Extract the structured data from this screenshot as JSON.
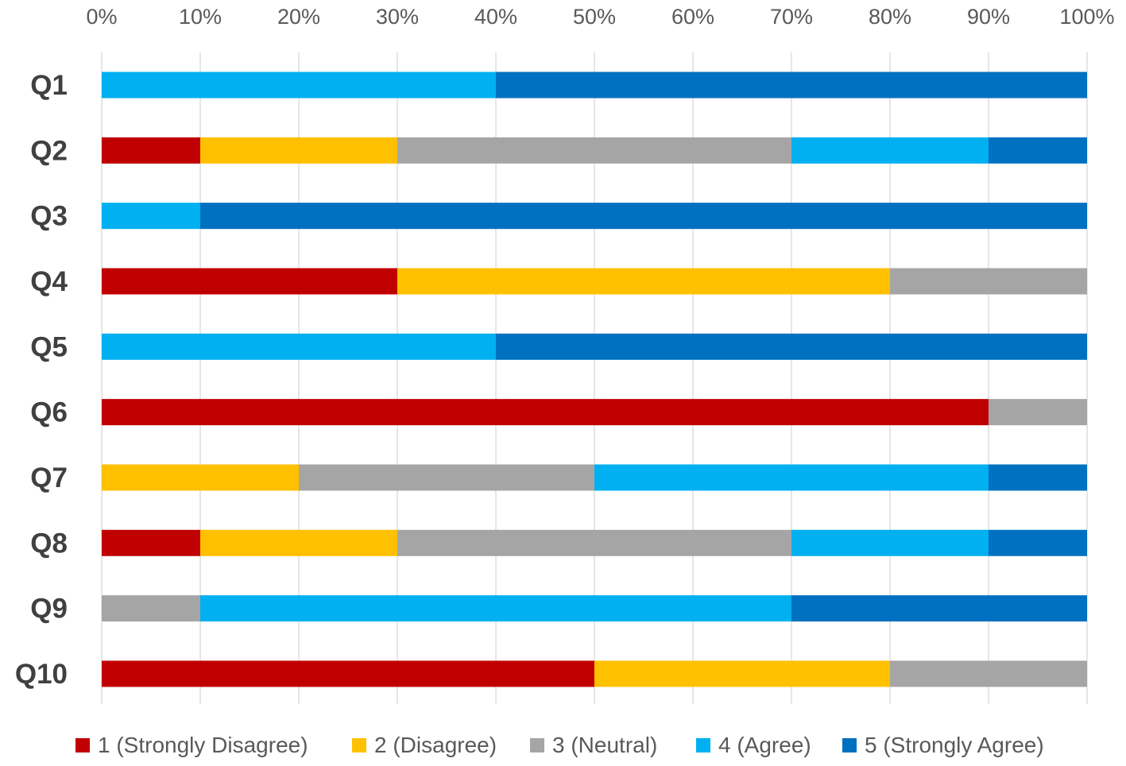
{
  "chart_data": {
    "type": "bar",
    "orientation": "horizontal",
    "stacked": "percent",
    "title": "",
    "xlabel": "",
    "ylabel": "",
    "xlim": [
      0,
      100
    ],
    "x_ticks": [
      "0%",
      "10%",
      "20%",
      "30%",
      "40%",
      "50%",
      "60%",
      "70%",
      "80%",
      "90%",
      "100%"
    ],
    "x_axis_position": "top",
    "grid": true,
    "legend_position": "bottom",
    "categories": [
      "Q1",
      "Q2",
      "Q3",
      "Q4",
      "Q5",
      "Q6",
      "Q7",
      "Q8",
      "Q9",
      "Q10"
    ],
    "series": [
      {
        "name": "1 (Strongly Disagree)",
        "color": "#C00000",
        "values": [
          0,
          10,
          0,
          30,
          0,
          90,
          0,
          10,
          0,
          50
        ]
      },
      {
        "name": "2 (Disagree)",
        "color": "#FFC000",
        "values": [
          0,
          20,
          0,
          50,
          0,
          0,
          20,
          20,
          0,
          30
        ]
      },
      {
        "name": "3 (Neutral)",
        "color": "#A5A5A5",
        "values": [
          0,
          40,
          0,
          20,
          0,
          10,
          30,
          40,
          10,
          20
        ]
      },
      {
        "name": "4 (Agree)",
        "color": "#00B0F0",
        "values": [
          40,
          20,
          10,
          0,
          40,
          0,
          40,
          20,
          60,
          0
        ]
      },
      {
        "name": "5 (Strongly Agree)",
        "color": "#0070C0",
        "values": [
          60,
          10,
          90,
          0,
          60,
          0,
          10,
          10,
          30,
          0
        ]
      }
    ]
  }
}
